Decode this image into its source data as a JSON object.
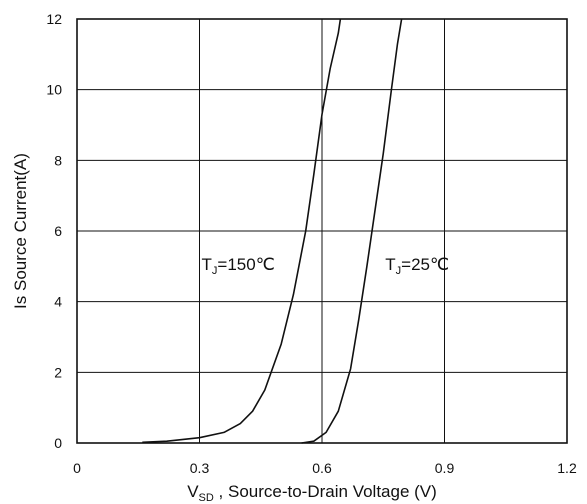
{
  "chart_data": {
    "type": "line",
    "title": "",
    "xlabel": {
      "main": "V",
      "subscript": "SD",
      "rest": " , Source-to-Drain Voltage (V)"
    },
    "ylabel": "Is Source Current(A)",
    "xlim": [
      0,
      1.2
    ],
    "ylim": [
      0,
      12
    ],
    "x_ticks": [
      "0",
      "0.3",
      "0.6",
      "0.9",
      "1.2"
    ],
    "y_ticks": [
      "0",
      "2",
      "4",
      "6",
      "8",
      "10",
      "12"
    ],
    "grid": true,
    "legend": "none",
    "line_color": "#111111",
    "series": [
      {
        "name": "",
        "annotation": {
          "main": "T",
          "subscript": "J",
          "rest": "=150℃"
        },
        "x": [
          0.16,
          0.22,
          0.3,
          0.36,
          0.4,
          0.43,
          0.46,
          0.5,
          0.53,
          0.56,
          0.58,
          0.6,
          0.62,
          0.64,
          0.645
        ],
        "y": [
          0.02,
          0.05,
          0.15,
          0.3,
          0.55,
          0.9,
          1.5,
          2.8,
          4.2,
          6.0,
          7.6,
          9.3,
          10.6,
          11.6,
          12.0
        ]
      },
      {
        "name": "",
        "annotation": {
          "main": "T",
          "subscript": "J",
          "rest": "=25℃"
        },
        "x": [
          0.55,
          0.58,
          0.61,
          0.64,
          0.67,
          0.69,
          0.71,
          0.73,
          0.75,
          0.77,
          0.785,
          0.795
        ],
        "y": [
          0.0,
          0.05,
          0.3,
          0.9,
          2.1,
          3.5,
          5.0,
          6.6,
          8.2,
          10.0,
          11.3,
          12.0
        ]
      }
    ]
  }
}
